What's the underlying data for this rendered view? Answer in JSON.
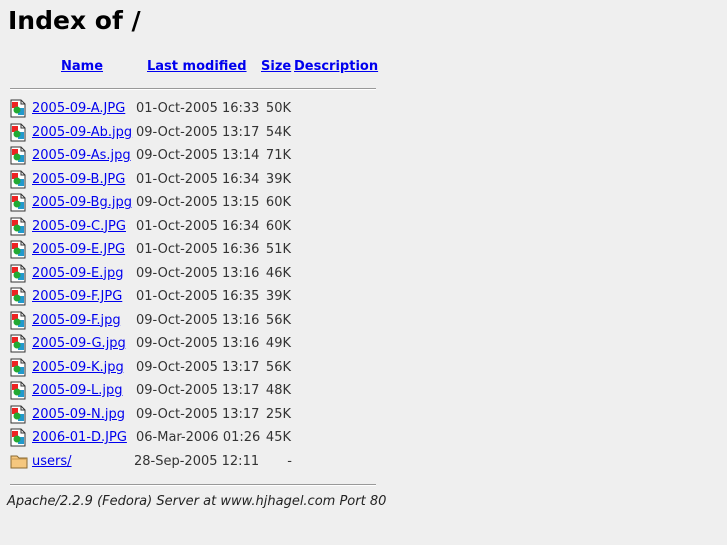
{
  "title": "Index of /",
  "columns": {
    "name": "Name",
    "last_modified": "Last modified",
    "size": "Size",
    "description": "Description"
  },
  "entries": [
    {
      "name": "2005-09-A.JPG",
      "modified": "01-Oct-2005 16:33",
      "size": "50K",
      "icon": "image-icon"
    },
    {
      "name": "2005-09-Ab.jpg",
      "modified": "09-Oct-2005 13:17",
      "size": "54K",
      "icon": "image-icon"
    },
    {
      "name": "2005-09-As.jpg",
      "modified": "09-Oct-2005 13:14",
      "size": "71K",
      "icon": "image-icon"
    },
    {
      "name": "2005-09-B.JPG",
      "modified": "01-Oct-2005 16:34",
      "size": "39K",
      "icon": "image-icon"
    },
    {
      "name": "2005-09-Bg.jpg",
      "modified": "09-Oct-2005 13:15",
      "size": "60K",
      "icon": "image-icon"
    },
    {
      "name": "2005-09-C.JPG",
      "modified": "01-Oct-2005 16:34",
      "size": "60K",
      "icon": "image-icon"
    },
    {
      "name": "2005-09-E.JPG",
      "modified": "01-Oct-2005 16:36",
      "size": "51K",
      "icon": "image-icon"
    },
    {
      "name": "2005-09-E.jpg",
      "modified": "09-Oct-2005 13:16",
      "size": "46K",
      "icon": "image-icon"
    },
    {
      "name": "2005-09-F.JPG",
      "modified": "01-Oct-2005 16:35",
      "size": "39K",
      "icon": "image-icon"
    },
    {
      "name": "2005-09-F.jpg",
      "modified": "09-Oct-2005 13:16",
      "size": "56K",
      "icon": "image-icon"
    },
    {
      "name": "2005-09-G.jpg",
      "modified": "09-Oct-2005 13:16",
      "size": "49K",
      "icon": "image-icon"
    },
    {
      "name": "2005-09-K.jpg",
      "modified": "09-Oct-2005 13:17",
      "size": "56K",
      "icon": "image-icon"
    },
    {
      "name": "2005-09-L.jpg",
      "modified": "09-Oct-2005 13:17",
      "size": "48K",
      "icon": "image-icon"
    },
    {
      "name": "2005-09-N.jpg",
      "modified": "09-Oct-2005 13:17",
      "size": "25K",
      "icon": "image-icon"
    },
    {
      "name": "2006-01-D.JPG",
      "modified": "06-Mar-2006 01:26",
      "size": "45K",
      "icon": "image-icon"
    },
    {
      "name": "users/",
      "modified": "28-Sep-2005 12:11",
      "size": "-",
      "icon": "folder-icon"
    }
  ],
  "address": "Apache/2.2.9 (Fedora) Server at www.hjhagel.com Port 80",
  "colors": {
    "link": "#0000ee",
    "background": "#efefef"
  }
}
